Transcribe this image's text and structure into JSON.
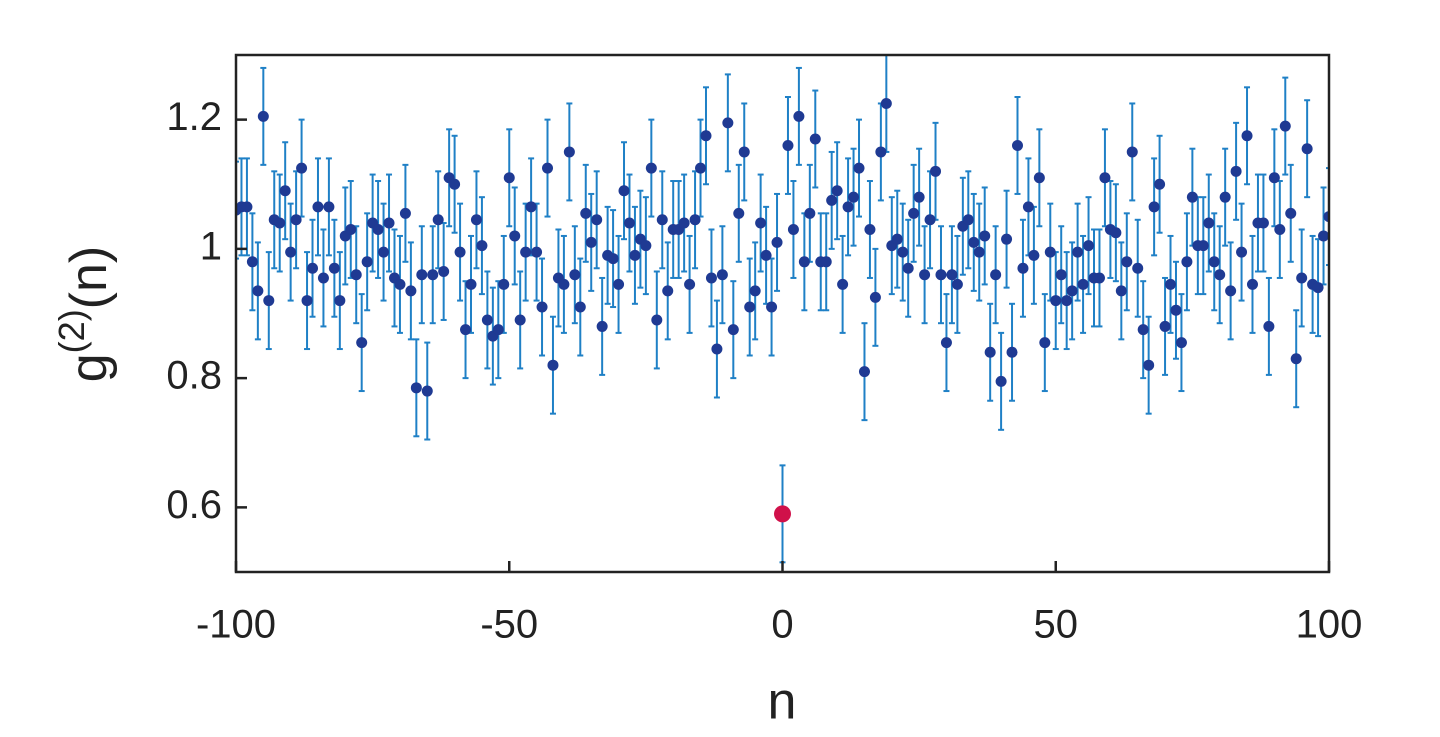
{
  "chart_data": {
    "type": "scatter",
    "xlabel": "n",
    "ylabel": [
      "g",
      "(2)",
      "(n)"
    ],
    "xlim": [
      -100,
      100
    ],
    "ylim": [
      0.5,
      1.3
    ],
    "xticks": [
      -100,
      -50,
      0,
      50,
      100
    ],
    "yticks": [
      0.6,
      0.8,
      1,
      1.2
    ],
    "series": [
      {
        "color": "#1f3a93",
        "error_color": "#1f80c6",
        "error": 0.075,
        "x": [
          -100,
          -99,
          -98,
          -97,
          -96,
          -95,
          -94,
          -93,
          -92,
          -91,
          -90,
          -89,
          -88,
          -87,
          -86,
          -85,
          -84,
          -83,
          -82,
          -81,
          -80,
          -79,
          -78,
          -77,
          -76,
          -75,
          -74,
          -73,
          -72,
          -71,
          -70,
          -69,
          -68,
          -67,
          -66,
          -65,
          -64,
          -63,
          -62,
          -61,
          -60,
          -59,
          -58,
          -57,
          -56,
          -55,
          -54,
          -53,
          -52,
          -51,
          -50,
          -49,
          -48,
          -47,
          -46,
          -45,
          -44,
          -43,
          -42,
          -41,
          -40,
          -39,
          -38,
          -37,
          -36,
          -35,
          -34,
          -33,
          -32,
          -31,
          -30,
          -29,
          -28,
          -27,
          -26,
          -25,
          -24,
          -23,
          -22,
          -21,
          -20,
          -19,
          -18,
          -17,
          -16,
          -15,
          -14,
          -13,
          -12,
          -11,
          -10,
          -9,
          -8,
          -7,
          -6,
          -5,
          -4,
          -3,
          -2,
          -1,
          1,
          2,
          3,
          4,
          5,
          6,
          7,
          8,
          9,
          10,
          11,
          12,
          13,
          14,
          15,
          16,
          17,
          18,
          19,
          20,
          21,
          22,
          23,
          24,
          25,
          26,
          27,
          28,
          29,
          30,
          31,
          32,
          33,
          34,
          35,
          36,
          37,
          38,
          39,
          40,
          41,
          42,
          43,
          44,
          45,
          46,
          47,
          48,
          49,
          50,
          51,
          52,
          53,
          54,
          55,
          56,
          57,
          58,
          59,
          60,
          61,
          62,
          63,
          64,
          65,
          66,
          67,
          68,
          69,
          70,
          71,
          72,
          73,
          74,
          75,
          76,
          77,
          78,
          79,
          80,
          81,
          82,
          83,
          84,
          85,
          86,
          87,
          88,
          89,
          90,
          91,
          92,
          93,
          94,
          95,
          96,
          97,
          98,
          99,
          100
        ],
        "values": [
          1.06,
          1.065,
          1.065,
          0.98,
          0.935,
          1.205,
          0.92,
          1.045,
          1.04,
          1.09,
          0.995,
          1.045,
          1.125,
          0.92,
          0.97,
          1.065,
          0.955,
          1.065,
          0.97,
          0.92,
          1.02,
          1.03,
          0.96,
          0.855,
          0.98,
          1.04,
          1.03,
          0.995,
          1.04,
          0.955,
          0.945,
          1.055,
          0.935,
          0.785,
          0.96,
          0.78,
          0.96,
          1.045,
          0.965,
          1.11,
          1.1,
          0.995,
          0.875,
          0.945,
          1.045,
          1.005,
          0.89,
          0.865,
          0.875,
          0.945,
          1.11,
          1.02,
          0.89,
          0.995,
          1.065,
          0.995,
          0.91,
          1.125,
          0.82,
          0.955,
          0.945,
          1.15,
          0.96,
          0.91,
          1.055,
          1.01,
          1.045,
          0.88,
          0.99,
          0.985,
          0.945,
          1.09,
          1.04,
          0.99,
          1.015,
          1.005,
          1.125,
          0.89,
          1.045,
          0.935,
          1.03,
          1.03,
          1.04,
          0.945,
          1.045,
          1.125,
          1.175,
          0.955,
          0.845,
          0.96,
          1.195,
          0.875,
          1.055,
          1.15,
          0.91,
          0.935,
          1.04,
          0.99,
          0.91,
          1.01,
          1.16,
          1.03,
          1.205,
          0.98,
          1.055,
          1.17,
          0.98,
          0.98,
          1.075,
          1.09,
          0.945,
          1.065,
          1.08,
          1.125,
          0.81,
          1.03,
          0.925,
          1.15,
          1.225,
          1.005,
          1.015,
          0.995,
          0.97,
          1.055,
          1.08,
          0.96,
          1.045,
          1.12,
          0.96,
          0.855,
          0.96,
          0.945,
          1.035,
          1.045,
          1.01,
          0.995,
          1.02,
          0.84,
          0.96,
          0.795,
          1.015,
          0.84,
          1.16,
          0.97,
          1.065,
          0.99,
          1.11,
          0.855,
          0.995,
          0.92,
          0.96,
          0.92,
          0.935,
          0.995,
          0.945,
          1.005,
          0.955,
          0.955,
          1.11,
          1.03,
          1.025,
          0.935,
          0.98,
          1.15,
          0.97,
          0.875,
          0.82,
          1.065,
          1.1,
          0.88,
          0.945,
          0.905,
          0.855,
          0.98,
          1.08,
          1.005,
          1.005,
          1.04,
          0.98,
          0.96,
          1.08,
          0.935,
          1.12,
          0.995,
          1.175,
          0.945,
          1.04,
          1.04,
          0.88,
          1.11,
          1.03,
          1.19,
          1.055,
          0.83,
          0.955,
          1.155,
          0.945,
          0.94,
          1.02,
          1.05
        ]
      },
      {
        "color": "#d0114a",
        "error_color": "#1f80c6",
        "error": 0.075,
        "x": [
          0
        ],
        "values": [
          0.59
        ]
      }
    ]
  }
}
